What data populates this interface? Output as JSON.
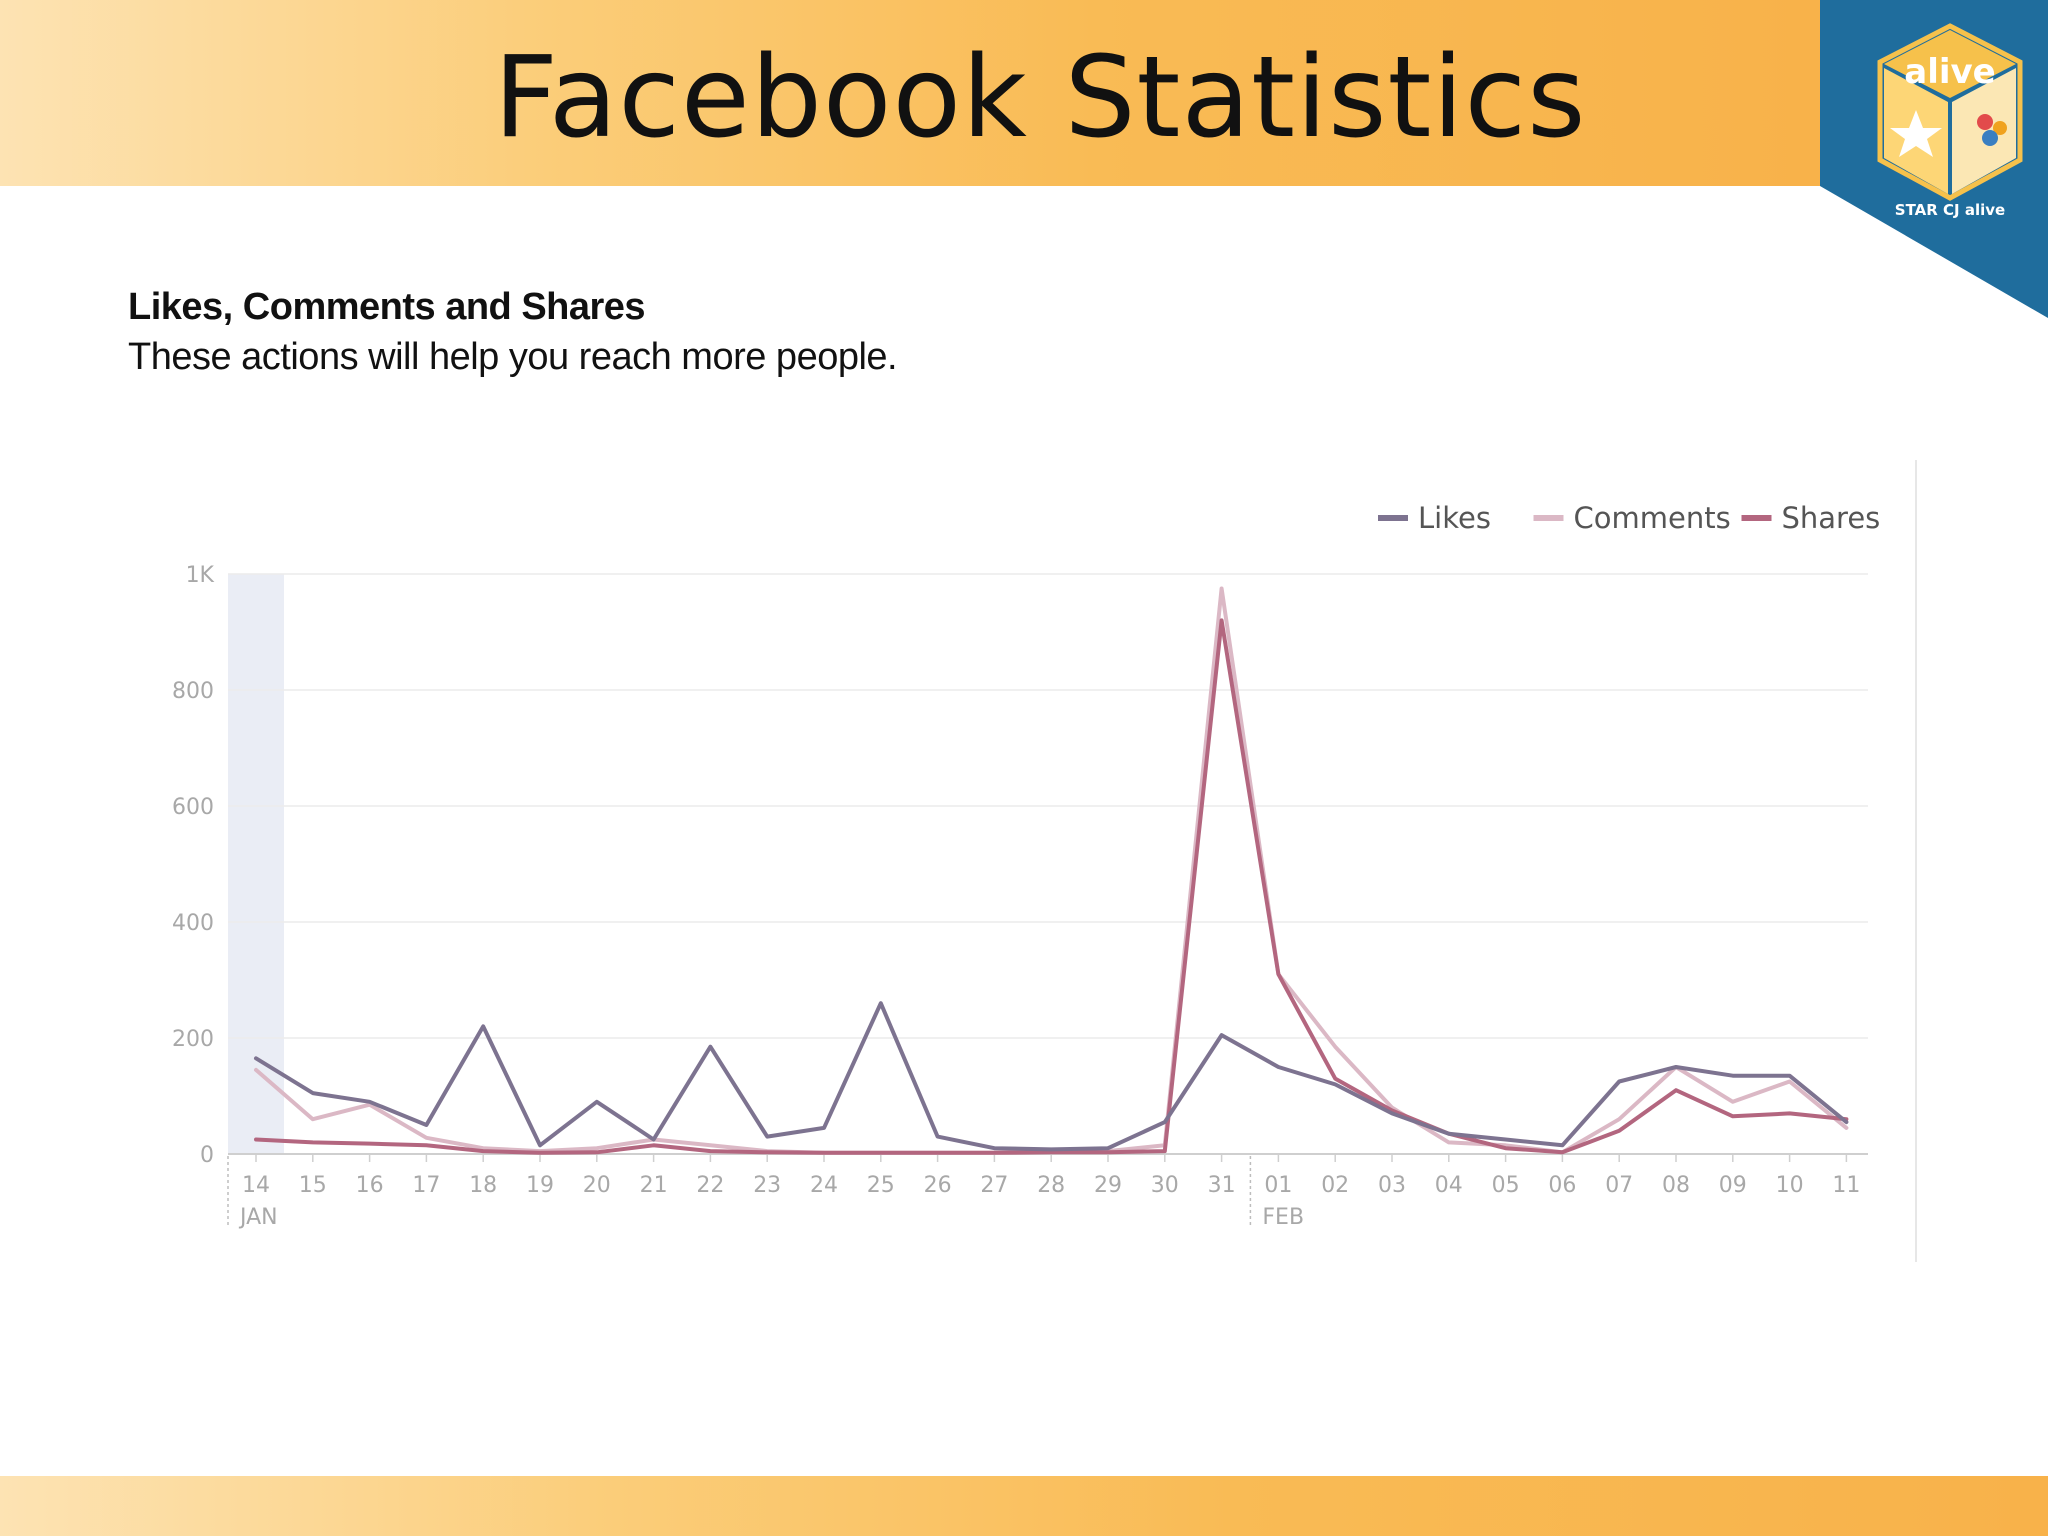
{
  "slide": {
    "title": "Facebook Statistics",
    "logo": {
      "brand_label": "alive",
      "caption": "STAR CJ alive"
    },
    "colors": {
      "header": "#f9bb55",
      "footer": "#f9bb55",
      "logo_panel": "#1f6d9d"
    }
  },
  "section": {
    "heading": "Likes, Comments and Shares",
    "subheading": "These actions will help you reach more people."
  },
  "chart_data": {
    "type": "line",
    "title": "",
    "xlabel": "",
    "ylabel": "",
    "categories": [
      "14",
      "15",
      "16",
      "17",
      "18",
      "19",
      "20",
      "21",
      "22",
      "23",
      "24",
      "25",
      "26",
      "27",
      "28",
      "29",
      "30",
      "31",
      "01",
      "02",
      "03",
      "04",
      "05",
      "06",
      "07",
      "08",
      "09",
      "10",
      "11"
    ],
    "month_labels": [
      {
        "at": "14",
        "label": "JAN"
      },
      {
        "at": "01",
        "label": "FEB"
      }
    ],
    "ylim": [
      0,
      1000
    ],
    "yticks": [
      {
        "value": 0,
        "label": "0"
      },
      {
        "value": 200,
        "label": "200"
      },
      {
        "value": 400,
        "label": "400"
      },
      {
        "value": 600,
        "label": "600"
      },
      {
        "value": 800,
        "label": "800"
      },
      {
        "value": 1000,
        "label": "1K"
      }
    ],
    "grid": true,
    "legend_position": "top-right",
    "highlight_category": "14",
    "series": [
      {
        "name": "Likes",
        "color": "#7d7390",
        "values": [
          165,
          105,
          90,
          50,
          220,
          15,
          90,
          25,
          185,
          30,
          45,
          260,
          30,
          10,
          8,
          10,
          55,
          205,
          150,
          120,
          70,
          35,
          25,
          15,
          125,
          150,
          135,
          135,
          55
        ]
      },
      {
        "name": "Comments",
        "color": "#dbb8c5",
        "values": [
          145,
          60,
          85,
          28,
          10,
          5,
          10,
          25,
          15,
          5,
          2,
          2,
          2,
          2,
          5,
          5,
          15,
          975,
          310,
          185,
          80,
          20,
          15,
          3,
          60,
          150,
          90,
          125,
          45
        ]
      },
      {
        "name": "Shares",
        "color": "#b3667f",
        "values": [
          25,
          20,
          18,
          15,
          5,
          2,
          3,
          15,
          5,
          3,
          2,
          2,
          2,
          2,
          3,
          3,
          5,
          920,
          310,
          130,
          75,
          35,
          10,
          3,
          40,
          110,
          65,
          70,
          60
        ]
      }
    ]
  }
}
